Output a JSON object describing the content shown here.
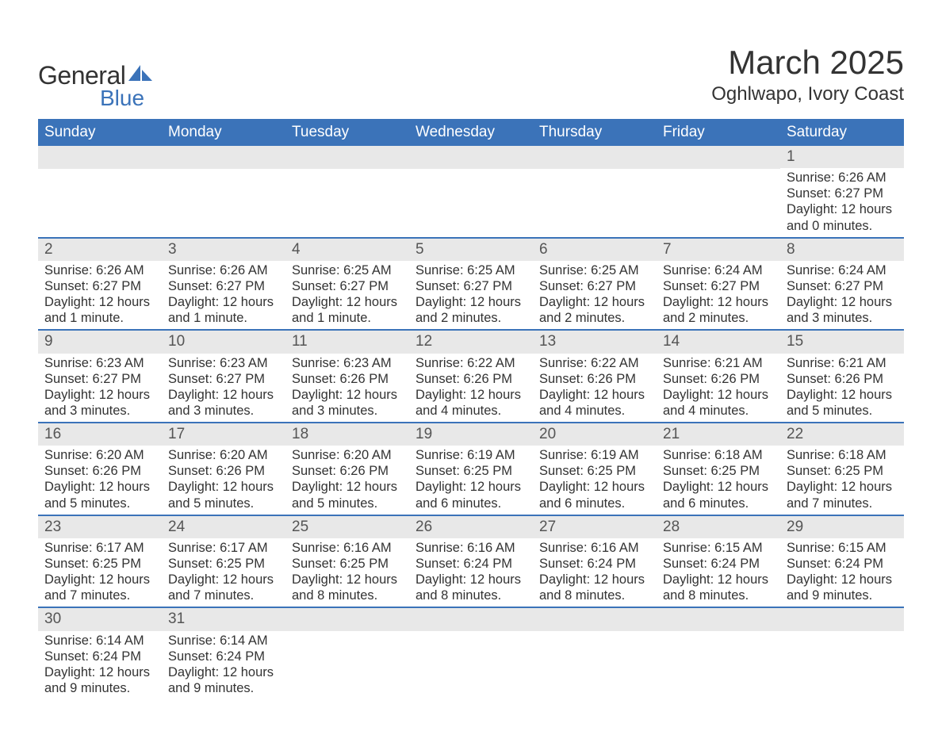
{
  "logo": {
    "word1": "General",
    "word2": "Blue",
    "accent_color": "#3b73b9"
  },
  "title": "March 2025",
  "location": "Oghlwapo, Ivory Coast",
  "weekdays": [
    "Sunday",
    "Monday",
    "Tuesday",
    "Wednesday",
    "Thursday",
    "Friday",
    "Saturday"
  ],
  "colors": {
    "header_bg": "#3b73b9",
    "header_text": "#ffffff",
    "daynum_bg": "#e8e8e8",
    "row_border": "#3b73b9",
    "text": "#333333",
    "page_bg": "#ffffff"
  },
  "weeks": [
    [
      null,
      null,
      null,
      null,
      null,
      null,
      {
        "n": "1",
        "sunrise": "Sunrise: 6:26 AM",
        "sunset": "Sunset: 6:27 PM",
        "daylight": "Daylight: 12 hours and 0 minutes."
      }
    ],
    [
      {
        "n": "2",
        "sunrise": "Sunrise: 6:26 AM",
        "sunset": "Sunset: 6:27 PM",
        "daylight": "Daylight: 12 hours and 1 minute."
      },
      {
        "n": "3",
        "sunrise": "Sunrise: 6:26 AM",
        "sunset": "Sunset: 6:27 PM",
        "daylight": "Daylight: 12 hours and 1 minute."
      },
      {
        "n": "4",
        "sunrise": "Sunrise: 6:25 AM",
        "sunset": "Sunset: 6:27 PM",
        "daylight": "Daylight: 12 hours and 1 minute."
      },
      {
        "n": "5",
        "sunrise": "Sunrise: 6:25 AM",
        "sunset": "Sunset: 6:27 PM",
        "daylight": "Daylight: 12 hours and 2 minutes."
      },
      {
        "n": "6",
        "sunrise": "Sunrise: 6:25 AM",
        "sunset": "Sunset: 6:27 PM",
        "daylight": "Daylight: 12 hours and 2 minutes."
      },
      {
        "n": "7",
        "sunrise": "Sunrise: 6:24 AM",
        "sunset": "Sunset: 6:27 PM",
        "daylight": "Daylight: 12 hours and 2 minutes."
      },
      {
        "n": "8",
        "sunrise": "Sunrise: 6:24 AM",
        "sunset": "Sunset: 6:27 PM",
        "daylight": "Daylight: 12 hours and 3 minutes."
      }
    ],
    [
      {
        "n": "9",
        "sunrise": "Sunrise: 6:23 AM",
        "sunset": "Sunset: 6:27 PM",
        "daylight": "Daylight: 12 hours and 3 minutes."
      },
      {
        "n": "10",
        "sunrise": "Sunrise: 6:23 AM",
        "sunset": "Sunset: 6:27 PM",
        "daylight": "Daylight: 12 hours and 3 minutes."
      },
      {
        "n": "11",
        "sunrise": "Sunrise: 6:23 AM",
        "sunset": "Sunset: 6:26 PM",
        "daylight": "Daylight: 12 hours and 3 minutes."
      },
      {
        "n": "12",
        "sunrise": "Sunrise: 6:22 AM",
        "sunset": "Sunset: 6:26 PM",
        "daylight": "Daylight: 12 hours and 4 minutes."
      },
      {
        "n": "13",
        "sunrise": "Sunrise: 6:22 AM",
        "sunset": "Sunset: 6:26 PM",
        "daylight": "Daylight: 12 hours and 4 minutes."
      },
      {
        "n": "14",
        "sunrise": "Sunrise: 6:21 AM",
        "sunset": "Sunset: 6:26 PM",
        "daylight": "Daylight: 12 hours and 4 minutes."
      },
      {
        "n": "15",
        "sunrise": "Sunrise: 6:21 AM",
        "sunset": "Sunset: 6:26 PM",
        "daylight": "Daylight: 12 hours and 5 minutes."
      }
    ],
    [
      {
        "n": "16",
        "sunrise": "Sunrise: 6:20 AM",
        "sunset": "Sunset: 6:26 PM",
        "daylight": "Daylight: 12 hours and 5 minutes."
      },
      {
        "n": "17",
        "sunrise": "Sunrise: 6:20 AM",
        "sunset": "Sunset: 6:26 PM",
        "daylight": "Daylight: 12 hours and 5 minutes."
      },
      {
        "n": "18",
        "sunrise": "Sunrise: 6:20 AM",
        "sunset": "Sunset: 6:26 PM",
        "daylight": "Daylight: 12 hours and 5 minutes."
      },
      {
        "n": "19",
        "sunrise": "Sunrise: 6:19 AM",
        "sunset": "Sunset: 6:25 PM",
        "daylight": "Daylight: 12 hours and 6 minutes."
      },
      {
        "n": "20",
        "sunrise": "Sunrise: 6:19 AM",
        "sunset": "Sunset: 6:25 PM",
        "daylight": "Daylight: 12 hours and 6 minutes."
      },
      {
        "n": "21",
        "sunrise": "Sunrise: 6:18 AM",
        "sunset": "Sunset: 6:25 PM",
        "daylight": "Daylight: 12 hours and 6 minutes."
      },
      {
        "n": "22",
        "sunrise": "Sunrise: 6:18 AM",
        "sunset": "Sunset: 6:25 PM",
        "daylight": "Daylight: 12 hours and 7 minutes."
      }
    ],
    [
      {
        "n": "23",
        "sunrise": "Sunrise: 6:17 AM",
        "sunset": "Sunset: 6:25 PM",
        "daylight": "Daylight: 12 hours and 7 minutes."
      },
      {
        "n": "24",
        "sunrise": "Sunrise: 6:17 AM",
        "sunset": "Sunset: 6:25 PM",
        "daylight": "Daylight: 12 hours and 7 minutes."
      },
      {
        "n": "25",
        "sunrise": "Sunrise: 6:16 AM",
        "sunset": "Sunset: 6:25 PM",
        "daylight": "Daylight: 12 hours and 8 minutes."
      },
      {
        "n": "26",
        "sunrise": "Sunrise: 6:16 AM",
        "sunset": "Sunset: 6:24 PM",
        "daylight": "Daylight: 12 hours and 8 minutes."
      },
      {
        "n": "27",
        "sunrise": "Sunrise: 6:16 AM",
        "sunset": "Sunset: 6:24 PM",
        "daylight": "Daylight: 12 hours and 8 minutes."
      },
      {
        "n": "28",
        "sunrise": "Sunrise: 6:15 AM",
        "sunset": "Sunset: 6:24 PM",
        "daylight": "Daylight: 12 hours and 8 minutes."
      },
      {
        "n": "29",
        "sunrise": "Sunrise: 6:15 AM",
        "sunset": "Sunset: 6:24 PM",
        "daylight": "Daylight: 12 hours and 9 minutes."
      }
    ],
    [
      {
        "n": "30",
        "sunrise": "Sunrise: 6:14 AM",
        "sunset": "Sunset: 6:24 PM",
        "daylight": "Daylight: 12 hours and 9 minutes."
      },
      {
        "n": "31",
        "sunrise": "Sunrise: 6:14 AM",
        "sunset": "Sunset: 6:24 PM",
        "daylight": "Daylight: 12 hours and 9 minutes."
      },
      null,
      null,
      null,
      null,
      null
    ]
  ]
}
